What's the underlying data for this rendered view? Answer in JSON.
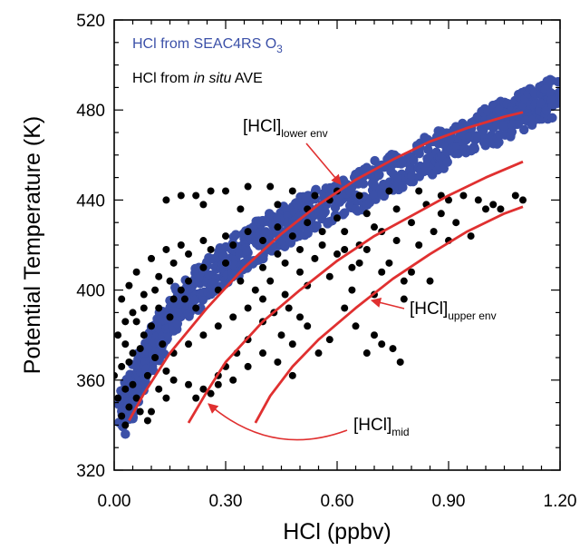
{
  "chart_data": {
    "type": "scatter",
    "xlabel": "HCl (ppbv)",
    "ylabel": "Potential Temperature (K)",
    "xlim": [
      0.0,
      1.2
    ],
    "ylim": [
      320,
      520
    ],
    "x_ticks": [
      "0.00",
      "0.30",
      "0.60",
      "0.90",
      "1.20"
    ],
    "y_ticks": [
      "320",
      "360",
      "400",
      "440",
      "480",
      "520"
    ],
    "grid": false,
    "legend_placement": "top-left",
    "legend": [
      {
        "text": "HCl from SEAC4RS O",
        "subscript": "3",
        "color": "#3b50a8"
      },
      {
        "text_prefix": "HCl from ",
        "text_italic": "in situ",
        "text_suffix": " AVE",
        "color": "#000000"
      }
    ],
    "series": [
      {
        "name": "HCl from SEAC4RS O3",
        "color": "#3b50a8",
        "band_center": [
          [
            0.02,
            345
          ],
          [
            0.05,
            355
          ],
          [
            0.1,
            372
          ],
          [
            0.15,
            388
          ],
          [
            0.25,
            405
          ],
          [
            0.35,
            418
          ],
          [
            0.45,
            428
          ],
          [
            0.55,
            436
          ],
          [
            0.7,
            448
          ],
          [
            0.85,
            460
          ],
          [
            1.0,
            472
          ],
          [
            1.1,
            480
          ],
          [
            1.19,
            486
          ]
        ],
        "band_halfwidth_K": 9
      },
      {
        "name": "HCl from in situ AVE",
        "color": "#000000",
        "points": [
          [
            0.03,
            340
          ],
          [
            0.02,
            344
          ],
          [
            0.04,
            348
          ],
          [
            0.01,
            352
          ],
          [
            0.03,
            356
          ],
          [
            0.05,
            358
          ],
          [
            0.0,
            362
          ],
          [
            0.02,
            366
          ],
          [
            0.04,
            368
          ],
          [
            0.06,
            352
          ],
          [
            0.07,
            346
          ],
          [
            0.09,
            342
          ],
          [
            0.05,
            372
          ],
          [
            0.03,
            376
          ],
          [
            0.08,
            380
          ],
          [
            0.1,
            384
          ],
          [
            0.06,
            386
          ],
          [
            0.09,
            362
          ],
          [
            0.12,
            356
          ],
          [
            0.11,
            370
          ],
          [
            0.13,
            376
          ],
          [
            0.15,
            388
          ],
          [
            0.12,
            392
          ],
          [
            0.16,
            396
          ],
          [
            0.18,
            400
          ],
          [
            0.2,
            404
          ],
          [
            0.19,
            396
          ],
          [
            0.22,
            392
          ],
          [
            0.14,
            364
          ],
          [
            0.16,
            360
          ],
          [
            0.2,
            358
          ],
          [
            0.24,
            356
          ],
          [
            0.26,
            354
          ],
          [
            0.28,
            362
          ],
          [
            0.3,
            366
          ],
          [
            0.33,
            372
          ],
          [
            0.36,
            378
          ],
          [
            0.4,
            386
          ],
          [
            0.43,
            390
          ],
          [
            0.47,
            392
          ],
          [
            0.5,
            388
          ],
          [
            0.52,
            384
          ],
          [
            0.45,
            380
          ],
          [
            0.48,
            376
          ],
          [
            0.55,
            372
          ],
          [
            0.58,
            378
          ],
          [
            0.62,
            392
          ],
          [
            0.65,
            384
          ],
          [
            0.7,
            380
          ],
          [
            0.72,
            376
          ],
          [
            0.75,
            374
          ],
          [
            0.77,
            368
          ],
          [
            0.68,
            372
          ],
          [
            0.78,
            396
          ],
          [
            0.8,
            408
          ],
          [
            0.85,
            404
          ],
          [
            0.74,
            412
          ],
          [
            0.66,
            420
          ],
          [
            0.72,
            426
          ],
          [
            0.8,
            430
          ],
          [
            0.88,
            434
          ],
          [
            0.92,
            430
          ],
          [
            0.96,
            424
          ],
          [
            1.0,
            436
          ],
          [
            1.02,
            438
          ],
          [
            1.04,
            436
          ],
          [
            1.08,
            442
          ],
          [
            1.1,
            440
          ],
          [
            0.98,
            440
          ],
          [
            0.9,
            440
          ],
          [
            0.84,
            438
          ],
          [
            0.76,
            436
          ],
          [
            0.68,
            434
          ],
          [
            0.6,
            432
          ],
          [
            0.52,
            430
          ],
          [
            0.44,
            428
          ],
          [
            0.36,
            426
          ],
          [
            0.3,
            424
          ],
          [
            0.24,
            422
          ],
          [
            0.18,
            420
          ],
          [
            0.14,
            418
          ],
          [
            0.1,
            414
          ],
          [
            0.06,
            408
          ],
          [
            0.04,
            402
          ],
          [
            0.02,
            396
          ],
          [
            0.05,
            390
          ],
          [
            0.08,
            398
          ],
          [
            0.12,
            406
          ],
          [
            0.16,
            412
          ],
          [
            0.2,
            416
          ],
          [
            0.26,
            418
          ],
          [
            0.32,
            420
          ],
          [
            0.4,
            422
          ],
          [
            0.48,
            424
          ],
          [
            0.56,
            426
          ],
          [
            0.62,
            426
          ],
          [
            0.7,
            428
          ],
          [
            0.58,
            440
          ],
          [
            0.54,
            442
          ],
          [
            0.48,
            444
          ],
          [
            0.42,
            446
          ],
          [
            0.36,
            446
          ],
          [
            0.3,
            444
          ],
          [
            0.26,
            444
          ],
          [
            0.22,
            442
          ],
          [
            0.18,
            442
          ],
          [
            0.14,
            440
          ],
          [
            0.24,
            438
          ],
          [
            0.34,
            436
          ],
          [
            0.44,
            438
          ],
          [
            0.52,
            436
          ],
          [
            0.6,
            444
          ],
          [
            0.66,
            442
          ],
          [
            0.74,
            444
          ],
          [
            0.82,
            444
          ],
          [
            0.88,
            442
          ],
          [
            0.94,
            442
          ],
          [
            0.4,
            410
          ],
          [
            0.46,
            412
          ],
          [
            0.54,
            414
          ],
          [
            0.6,
            416
          ],
          [
            0.66,
            412
          ],
          [
            0.72,
            408
          ],
          [
            0.78,
            404
          ],
          [
            0.34,
            404
          ],
          [
            0.28,
            400
          ],
          [
            0.24,
            410
          ],
          [
            0.3,
            412
          ],
          [
            0.64,
            400
          ],
          [
            0.7,
            398
          ],
          [
            0.58,
            406
          ],
          [
            0.52,
            402
          ],
          [
            0.46,
            398
          ],
          [
            0.4,
            396
          ],
          [
            0.36,
            392
          ],
          [
            0.32,
            388
          ],
          [
            0.28,
            384
          ],
          [
            0.24,
            380
          ],
          [
            0.2,
            376
          ],
          [
            0.16,
            372
          ],
          [
            0.4,
            372
          ],
          [
            0.44,
            368
          ],
          [
            0.48,
            362
          ],
          [
            0.36,
            366
          ],
          [
            0.32,
            360
          ],
          [
            0.28,
            358
          ],
          [
            0.22,
            352
          ],
          [
            0.1,
            346
          ],
          [
            0.14,
            352
          ],
          [
            0.07,
            374
          ],
          [
            0.01,
            380
          ],
          [
            0.08,
            392
          ],
          [
            0.03,
            386
          ],
          [
            0.11,
            400
          ],
          [
            0.15,
            404
          ],
          [
            0.62,
            418
          ],
          [
            0.68,
            418
          ],
          [
            0.56,
            420
          ],
          [
            0.5,
            418
          ],
          [
            0.44,
            416
          ],
          [
            0.82,
            420
          ],
          [
            0.86,
            426
          ],
          [
            0.9,
            422
          ],
          [
            0.76,
            422
          ],
          [
            0.64,
            410
          ],
          [
            0.5,
            408
          ],
          [
            0.42,
            404
          ],
          [
            0.38,
            400
          ]
        ]
      }
    ],
    "curves": [
      {
        "name": "lower env",
        "color": "#e03030",
        "points": [
          [
            0.04,
            342
          ],
          [
            0.08,
            354
          ],
          [
            0.15,
            372
          ],
          [
            0.25,
            392
          ],
          [
            0.35,
            410
          ],
          [
            0.45,
            425
          ],
          [
            0.55,
            438
          ],
          [
            0.65,
            449
          ],
          [
            0.75,
            458
          ],
          [
            0.85,
            466
          ],
          [
            0.95,
            472
          ],
          [
            1.05,
            477
          ],
          [
            1.1,
            479
          ]
        ]
      },
      {
        "name": "mid",
        "color": "#e03030",
        "points": [
          [
            0.2,
            341
          ],
          [
            0.25,
            355
          ],
          [
            0.3,
            368
          ],
          [
            0.4,
            386
          ],
          [
            0.5,
            400
          ],
          [
            0.6,
            413
          ],
          [
            0.7,
            424
          ],
          [
            0.8,
            433
          ],
          [
            0.9,
            442
          ],
          [
            1.0,
            450
          ],
          [
            1.1,
            457
          ]
        ]
      },
      {
        "name": "upper env",
        "color": "#e03030",
        "points": [
          [
            0.38,
            341
          ],
          [
            0.42,
            353
          ],
          [
            0.48,
            366
          ],
          [
            0.55,
            378
          ],
          [
            0.65,
            392
          ],
          [
            0.75,
            405
          ],
          [
            0.85,
            416
          ],
          [
            0.95,
            426
          ],
          [
            1.05,
            434
          ],
          [
            1.1,
            437
          ]
        ]
      }
    ],
    "annotations": [
      {
        "base": "[HCl]",
        "sub": "lower env"
      },
      {
        "base": "[HCl]",
        "sub": "upper env"
      },
      {
        "base": "[HCl]",
        "sub": "mid"
      }
    ]
  }
}
